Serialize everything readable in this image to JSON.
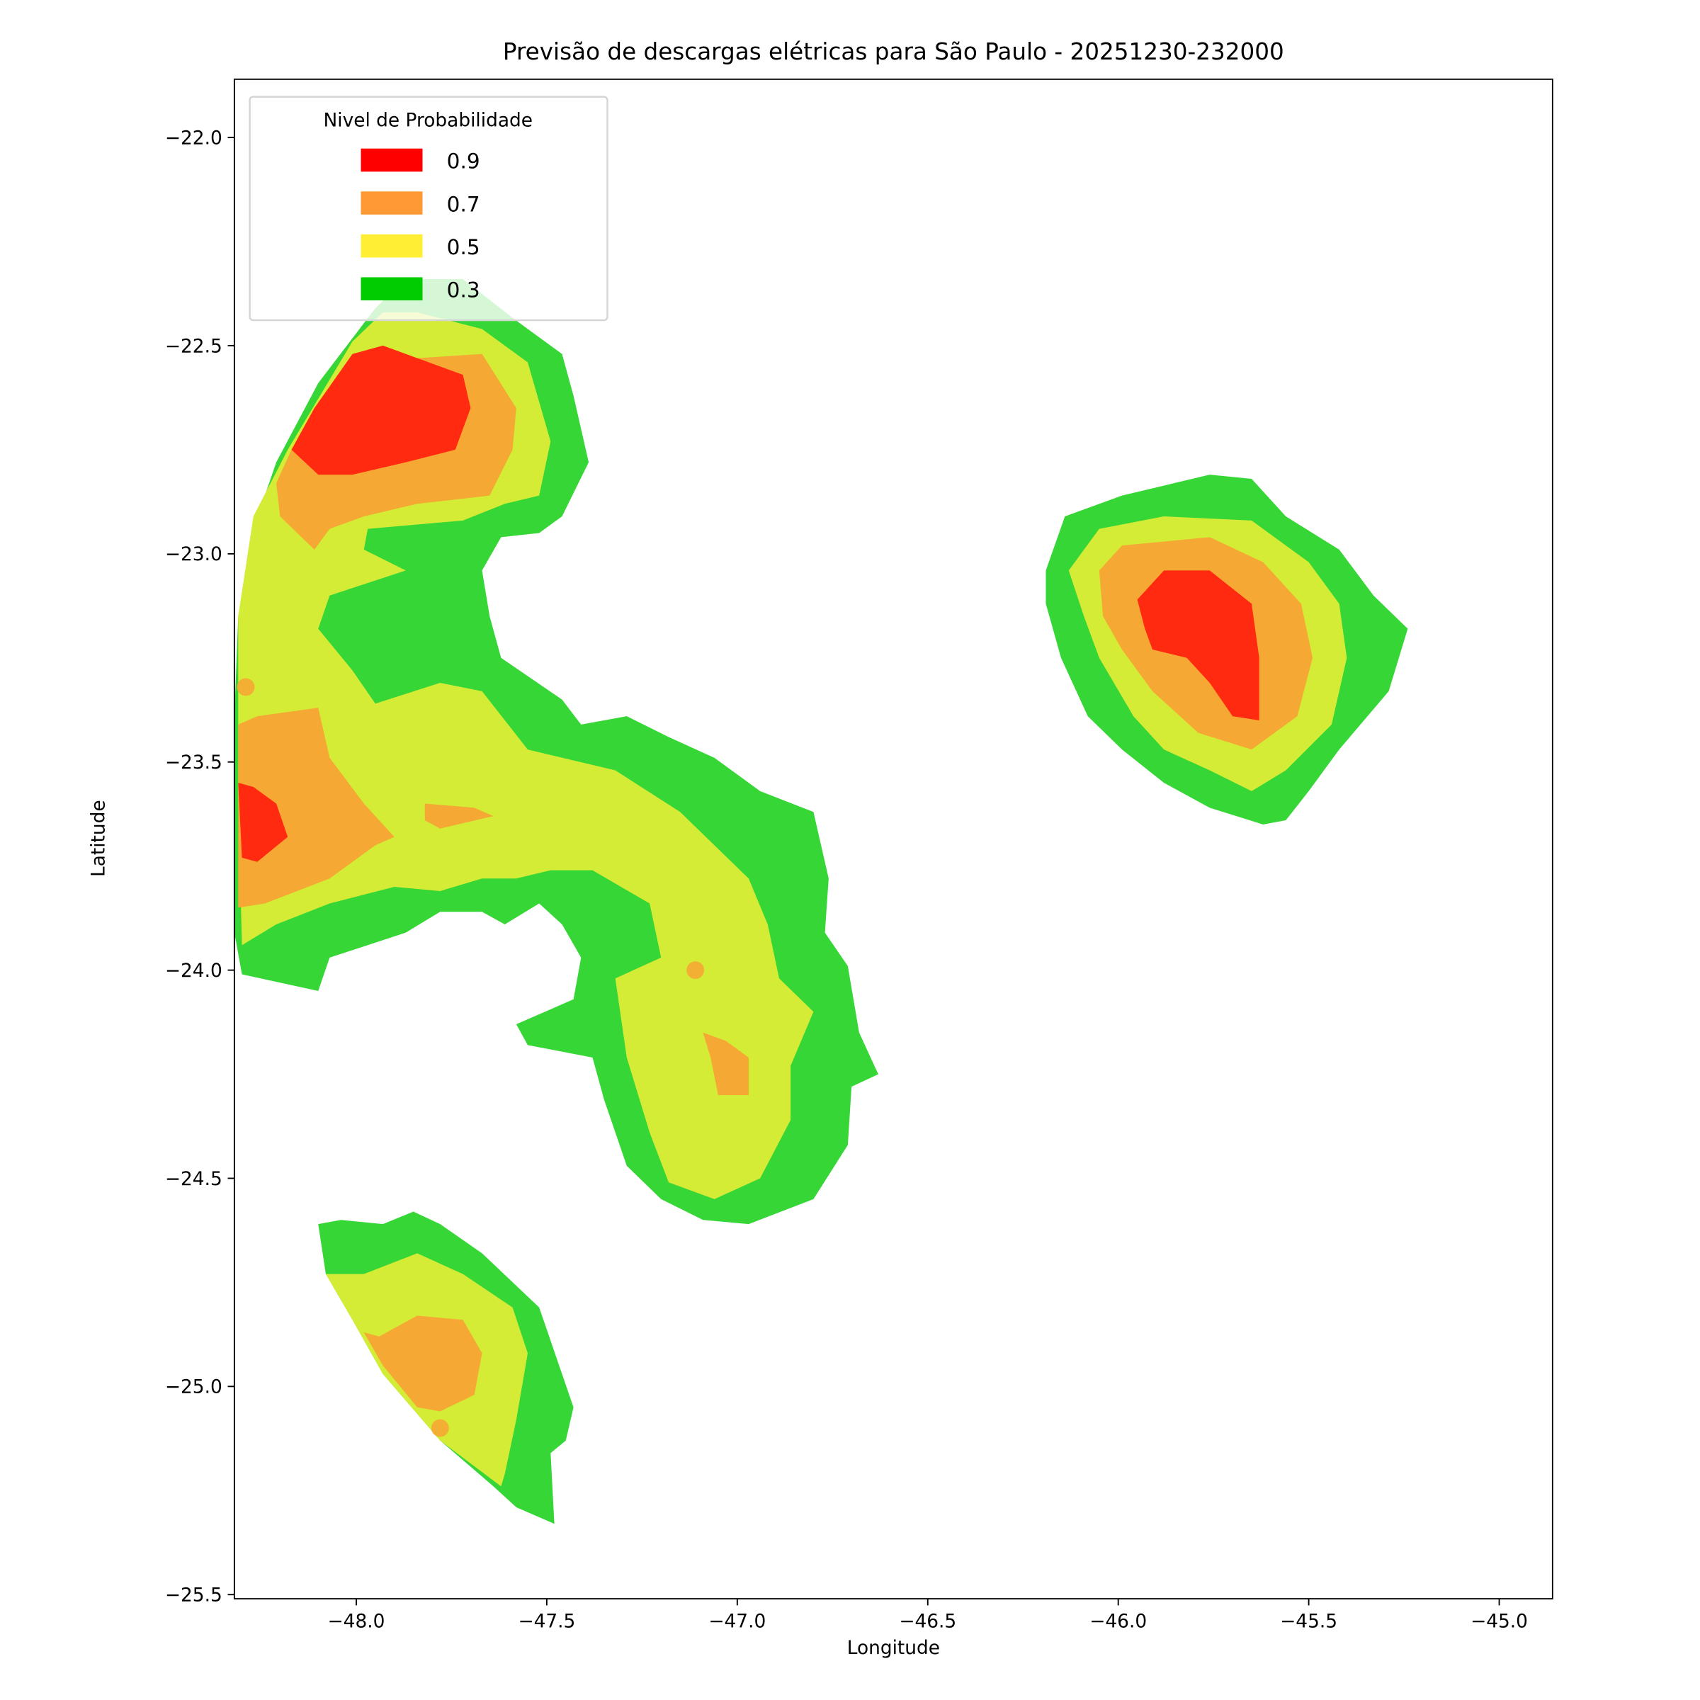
{
  "chart_data": {
    "type": "contour",
    "title": "Previsão de descargas elétricas para São Paulo - 20251230-232000",
    "xlabel": "Longitude",
    "ylabel": "Latitude",
    "xlim": [
      -48.32,
      -44.86
    ],
    "ylim": [
      -25.51,
      -21.86
    ],
    "xticks": [
      -48.0,
      -47.5,
      -47.0,
      -46.5,
      -46.0,
      -45.5,
      -45.0
    ],
    "yticks": [
      -22.0,
      -22.5,
      -23.0,
      -23.5,
      -24.0,
      -24.5,
      -25.0,
      -25.5
    ],
    "xtick_labels": [
      "−48.0",
      "−47.5",
      "−47.0",
      "−46.5",
      "−46.0",
      "−45.5",
      "−45.0"
    ],
    "ytick_labels": [
      "−22.0",
      "−22.5",
      "−23.0",
      "−23.5",
      "−24.0",
      "−24.5",
      "−25.0",
      "−25.5"
    ],
    "grid": false,
    "legend": {
      "title": "Nivel de Probabilidade",
      "placement": "top-left",
      "entries": [
        {
          "label": "0.9",
          "color": "#ff0000"
        },
        {
          "label": "0.7",
          "color": "#ff9933"
        },
        {
          "label": "0.5",
          "color": "#ffee33"
        },
        {
          "label": "0.3",
          "color": "#00cc00"
        }
      ]
    },
    "level_fill_colors": {
      "0.3": "#36d636",
      "0.5": "#d4ec36",
      "0.7": "#f5a833",
      "0.9": "#ff2a0f"
    },
    "regions": [
      {
        "level": "0.3",
        "points": [
          [
            -48.32,
            -23.39
          ],
          [
            -48.31,
            -23.15
          ],
          [
            -48.27,
            -22.94
          ],
          [
            -48.21,
            -22.78
          ],
          [
            -48.1,
            -22.59
          ],
          [
            -47.95,
            -22.41
          ],
          [
            -47.87,
            -22.34
          ],
          [
            -47.72,
            -22.34
          ],
          [
            -47.58,
            -22.44
          ],
          [
            -47.46,
            -22.52
          ],
          [
            -47.43,
            -22.62
          ],
          [
            -47.39,
            -22.78
          ],
          [
            -47.46,
            -22.91
          ],
          [
            -47.52,
            -22.95
          ],
          [
            -47.62,
            -22.96
          ],
          [
            -47.67,
            -23.04
          ],
          [
            -47.65,
            -23.15
          ],
          [
            -47.62,
            -23.25
          ],
          [
            -47.46,
            -23.35
          ],
          [
            -47.41,
            -23.41
          ],
          [
            -47.29,
            -23.39
          ],
          [
            -47.18,
            -23.44
          ],
          [
            -47.06,
            -23.49
          ],
          [
            -46.94,
            -23.57
          ],
          [
            -46.8,
            -23.62
          ],
          [
            -46.76,
            -23.78
          ],
          [
            -46.77,
            -23.91
          ],
          [
            -46.71,
            -23.99
          ],
          [
            -46.68,
            -24.15
          ],
          [
            -46.63,
            -24.25
          ],
          [
            -46.7,
            -24.28
          ],
          [
            -46.71,
            -24.42
          ],
          [
            -46.8,
            -24.55
          ],
          [
            -46.97,
            -24.61
          ],
          [
            -47.09,
            -24.6
          ],
          [
            -47.2,
            -24.55
          ],
          [
            -47.29,
            -24.47
          ],
          [
            -47.35,
            -24.31
          ],
          [
            -47.38,
            -24.21
          ],
          [
            -47.55,
            -24.18
          ],
          [
            -47.58,
            -24.13
          ],
          [
            -47.43,
            -24.07
          ],
          [
            -47.41,
            -23.97
          ],
          [
            -47.46,
            -23.89
          ],
          [
            -47.52,
            -23.84
          ],
          [
            -47.61,
            -23.89
          ],
          [
            -47.67,
            -23.86
          ],
          [
            -47.78,
            -23.86
          ],
          [
            -47.87,
            -23.91
          ],
          [
            -48.07,
            -23.97
          ],
          [
            -48.1,
            -24.05
          ],
          [
            -48.3,
            -24.01
          ],
          [
            -48.32,
            -23.91
          ]
        ]
      },
      {
        "level": "0.5",
        "points": [
          [
            -48.31,
            -23.15
          ],
          [
            -48.27,
            -22.91
          ],
          [
            -48.18,
            -22.75
          ],
          [
            -48.01,
            -22.49
          ],
          [
            -47.93,
            -22.42
          ],
          [
            -47.84,
            -22.42
          ],
          [
            -47.67,
            -22.46
          ],
          [
            -47.55,
            -22.54
          ],
          [
            -47.49,
            -22.73
          ],
          [
            -47.52,
            -22.86
          ],
          [
            -47.61,
            -22.88
          ],
          [
            -47.72,
            -22.92
          ],
          [
            -47.97,
            -22.94
          ],
          [
            -47.98,
            -22.99
          ],
          [
            -47.87,
            -23.04
          ],
          [
            -48.07,
            -23.1
          ],
          [
            -48.1,
            -23.18
          ],
          [
            -48.01,
            -23.28
          ],
          [
            -47.95,
            -23.36
          ],
          [
            -47.78,
            -23.31
          ],
          [
            -47.67,
            -23.33
          ],
          [
            -47.55,
            -23.47
          ],
          [
            -47.32,
            -23.52
          ],
          [
            -47.15,
            -23.62
          ],
          [
            -46.97,
            -23.78
          ],
          [
            -46.92,
            -23.89
          ],
          [
            -46.89,
            -24.02
          ],
          [
            -46.8,
            -24.1
          ],
          [
            -46.86,
            -24.23
          ],
          [
            -46.86,
            -24.36
          ],
          [
            -46.94,
            -24.5
          ],
          [
            -47.06,
            -24.55
          ],
          [
            -47.18,
            -24.51
          ],
          [
            -47.23,
            -24.39
          ],
          [
            -47.29,
            -24.21
          ],
          [
            -47.32,
            -24.02
          ],
          [
            -47.2,
            -23.97
          ],
          [
            -47.23,
            -23.84
          ],
          [
            -47.38,
            -23.76
          ],
          [
            -47.49,
            -23.76
          ],
          [
            -47.58,
            -23.78
          ],
          [
            -47.67,
            -23.78
          ],
          [
            -47.78,
            -23.81
          ],
          [
            -47.9,
            -23.8
          ],
          [
            -48.07,
            -23.84
          ],
          [
            -48.21,
            -23.89
          ],
          [
            -48.3,
            -23.94
          ],
          [
            -48.31,
            -23.6
          ]
        ]
      },
      {
        "level": "0.7",
        "points": [
          [
            -48.17,
            -22.75
          ],
          [
            -48.1,
            -22.65
          ],
          [
            -48.01,
            -22.52
          ],
          [
            -47.84,
            -22.53
          ],
          [
            -47.67,
            -22.52
          ],
          [
            -47.58,
            -22.65
          ],
          [
            -47.59,
            -22.75
          ],
          [
            -47.65,
            -22.86
          ],
          [
            -47.84,
            -22.88
          ],
          [
            -47.98,
            -22.91
          ],
          [
            -48.07,
            -22.94
          ],
          [
            -48.11,
            -22.99
          ],
          [
            -48.2,
            -22.91
          ],
          [
            -48.21,
            -22.83
          ]
        ]
      },
      {
        "level": "0.9",
        "points": [
          [
            -48.17,
            -22.75
          ],
          [
            -48.11,
            -22.65
          ],
          [
            -48.01,
            -22.52
          ],
          [
            -47.93,
            -22.5
          ],
          [
            -47.72,
            -22.57
          ],
          [
            -47.7,
            -22.65
          ],
          [
            -47.74,
            -22.75
          ],
          [
            -47.87,
            -22.78
          ],
          [
            -48.01,
            -22.81
          ],
          [
            -48.1,
            -22.81
          ]
        ]
      },
      {
        "level": "0.7",
        "points": [
          [
            -48.31,
            -23.41
          ],
          [
            -48.26,
            -23.39
          ],
          [
            -48.1,
            -23.37
          ],
          [
            -48.07,
            -23.49
          ],
          [
            -47.98,
            -23.6
          ],
          [
            -47.9,
            -23.68
          ],
          [
            -47.95,
            -23.7
          ],
          [
            -48.07,
            -23.78
          ],
          [
            -48.24,
            -23.84
          ],
          [
            -48.31,
            -23.85
          ]
        ]
      },
      {
        "level": "0.7",
        "points": [
          [
            -47.82,
            -23.6
          ],
          [
            -47.69,
            -23.61
          ],
          [
            -47.64,
            -23.63
          ],
          [
            -47.78,
            -23.66
          ],
          [
            -47.82,
            -23.64
          ]
        ]
      },
      {
        "level": "0.9",
        "points": [
          [
            -48.31,
            -23.55
          ],
          [
            -48.27,
            -23.56
          ],
          [
            -48.21,
            -23.6
          ],
          [
            -48.18,
            -23.68
          ],
          [
            -48.26,
            -23.74
          ],
          [
            -48.3,
            -23.73
          ]
        ]
      },
      {
        "level": "0.7",
        "points": [
          [
            -47.09,
            -24.15
          ],
          [
            -47.03,
            -24.17
          ],
          [
            -46.97,
            -24.21
          ],
          [
            -46.97,
            -24.3
          ],
          [
            -47.05,
            -24.3
          ],
          [
            -47.07,
            -24.21
          ]
        ]
      },
      {
        "level": "0.3",
        "points": [
          [
            -46.19,
            -23.04
          ],
          [
            -46.14,
            -22.91
          ],
          [
            -45.99,
            -22.86
          ],
          [
            -45.76,
            -22.81
          ],
          [
            -45.65,
            -22.82
          ],
          [
            -45.56,
            -22.91
          ],
          [
            -45.42,
            -22.99
          ],
          [
            -45.33,
            -23.1
          ],
          [
            -45.24,
            -23.18
          ],
          [
            -45.29,
            -23.33
          ],
          [
            -45.42,
            -23.47
          ],
          [
            -45.5,
            -23.57
          ],
          [
            -45.56,
            -23.64
          ],
          [
            -45.62,
            -23.65
          ],
          [
            -45.76,
            -23.61
          ],
          [
            -45.88,
            -23.55
          ],
          [
            -45.99,
            -23.47
          ],
          [
            -46.08,
            -23.39
          ],
          [
            -46.15,
            -23.25
          ],
          [
            -46.19,
            -23.12
          ]
        ]
      },
      {
        "level": "0.5",
        "points": [
          [
            -46.13,
            -23.04
          ],
          [
            -46.05,
            -22.94
          ],
          [
            -45.88,
            -22.91
          ],
          [
            -45.65,
            -22.92
          ],
          [
            -45.5,
            -23.02
          ],
          [
            -45.42,
            -23.12
          ],
          [
            -45.4,
            -23.25
          ],
          [
            -45.44,
            -23.41
          ],
          [
            -45.56,
            -23.52
          ],
          [
            -45.65,
            -23.57
          ],
          [
            -45.76,
            -23.52
          ],
          [
            -45.88,
            -23.47
          ],
          [
            -45.96,
            -23.39
          ],
          [
            -46.05,
            -23.25
          ],
          [
            -46.09,
            -23.15
          ]
        ]
      },
      {
        "level": "0.7",
        "points": [
          [
            -46.05,
            -23.04
          ],
          [
            -45.99,
            -22.98
          ],
          [
            -45.76,
            -22.96
          ],
          [
            -45.62,
            -23.02
          ],
          [
            -45.52,
            -23.12
          ],
          [
            -45.49,
            -23.25
          ],
          [
            -45.53,
            -23.39
          ],
          [
            -45.65,
            -23.47
          ],
          [
            -45.79,
            -23.43
          ],
          [
            -45.91,
            -23.33
          ],
          [
            -45.99,
            -23.23
          ],
          [
            -46.04,
            -23.15
          ]
        ]
      },
      {
        "level": "0.9",
        "points": [
          [
            -45.95,
            -23.11
          ],
          [
            -45.88,
            -23.04
          ],
          [
            -45.76,
            -23.04
          ],
          [
            -45.65,
            -23.12
          ],
          [
            -45.63,
            -23.25
          ],
          [
            -45.63,
            -23.4
          ],
          [
            -45.7,
            -23.39
          ],
          [
            -45.76,
            -23.31
          ],
          [
            -45.82,
            -23.25
          ],
          [
            -45.91,
            -23.23
          ],
          [
            -45.93,
            -23.18
          ]
        ]
      },
      {
        "level": "0.3",
        "points": [
          [
            -48.1,
            -24.61
          ],
          [
            -48.04,
            -24.6
          ],
          [
            -47.93,
            -24.61
          ],
          [
            -47.85,
            -24.58
          ],
          [
            -47.78,
            -24.61
          ],
          [
            -47.67,
            -24.68
          ],
          [
            -47.52,
            -24.81
          ],
          [
            -47.43,
            -25.05
          ],
          [
            -47.45,
            -25.13
          ],
          [
            -47.49,
            -25.16
          ],
          [
            -47.48,
            -25.33
          ],
          [
            -47.58,
            -25.29
          ],
          [
            -47.64,
            -25.24
          ],
          [
            -47.78,
            -25.13
          ],
          [
            -47.93,
            -24.97
          ],
          [
            -48.01,
            -24.84
          ],
          [
            -48.08,
            -24.73
          ]
        ]
      },
      {
        "level": "0.5",
        "points": [
          [
            -48.08,
            -24.73
          ],
          [
            -47.98,
            -24.73
          ],
          [
            -47.84,
            -24.68
          ],
          [
            -47.72,
            -24.73
          ],
          [
            -47.59,
            -24.81
          ],
          [
            -47.55,
            -24.92
          ],
          [
            -47.58,
            -25.08
          ],
          [
            -47.61,
            -25.21
          ],
          [
            -47.62,
            -25.24
          ],
          [
            -47.78,
            -25.13
          ],
          [
            -47.93,
            -24.97
          ],
          [
            -48.01,
            -24.84
          ]
        ]
      },
      {
        "level": "0.7",
        "points": [
          [
            -47.98,
            -24.87
          ],
          [
            -47.94,
            -24.88
          ],
          [
            -47.84,
            -24.83
          ],
          [
            -47.72,
            -24.84
          ],
          [
            -47.67,
            -24.92
          ],
          [
            -47.69,
            -25.02
          ],
          [
            -47.78,
            -25.06
          ],
          [
            -47.84,
            -25.05
          ],
          [
            -47.93,
            -24.95
          ]
        ]
      }
    ],
    "points": [
      {
        "lon": -48.29,
        "lat": -23.32,
        "level": "0.7"
      },
      {
        "lon": -47.11,
        "lat": -24.0,
        "level": "0.7"
      },
      {
        "lon": -47.78,
        "lat": -25.1,
        "level": "0.7"
      }
    ]
  }
}
